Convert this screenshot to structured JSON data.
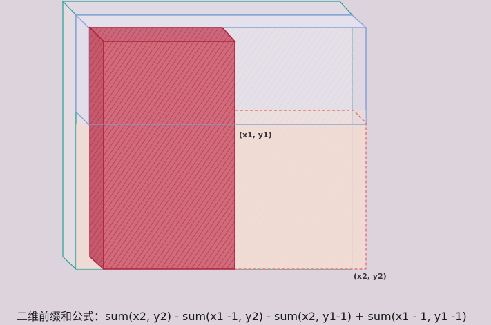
{
  "labels": {
    "point1": "(x1, y1)",
    "point2": "(x2, y2)"
  },
  "formula": {
    "prefix": "二维前缀和公式：",
    "expression": "sum(x2, y2) - sum(x1 -1, y2) - sum(x2, y1-1) + sum(x1 - 1, y1 -1)"
  },
  "colors": {
    "background": "#dcd3dc",
    "outer_box": "#2a9d8f",
    "top_band": "#7c9cd6",
    "left_column": "#c43a4e",
    "query_region": "#e06666"
  }
}
